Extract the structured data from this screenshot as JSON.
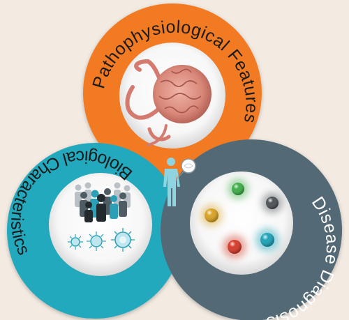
{
  "diagram": {
    "segments": [
      {
        "id": "pathophysiological",
        "label": "Pathophysiological Features",
        "color": "#f17a23",
        "text_color": "#1b1b1b"
      },
      {
        "id": "biological",
        "label": "Biological Characteristics",
        "color": "#23a9bd",
        "text_color": "#1b1b1b"
      },
      {
        "id": "diagnosis",
        "label": "Disease Diagnosis",
        "color": "#536a76",
        "text_color": "#ffffff"
      }
    ],
    "center_icon": "human-body-scan-icon",
    "tumor_icon": "tumor-vasculature-icon",
    "population_icon": "population-crowd-icon",
    "particle_icons": [
      "exosome-particle-icon",
      "exosome-particle-icon",
      "exosome-particle-icon"
    ],
    "diagnosis_spheres": [
      "#3fae49",
      "#4d5358",
      "#d9a325",
      "#d53c2c",
      "#1ea3b8"
    ],
    "background_color": "#f3ebe2"
  }
}
